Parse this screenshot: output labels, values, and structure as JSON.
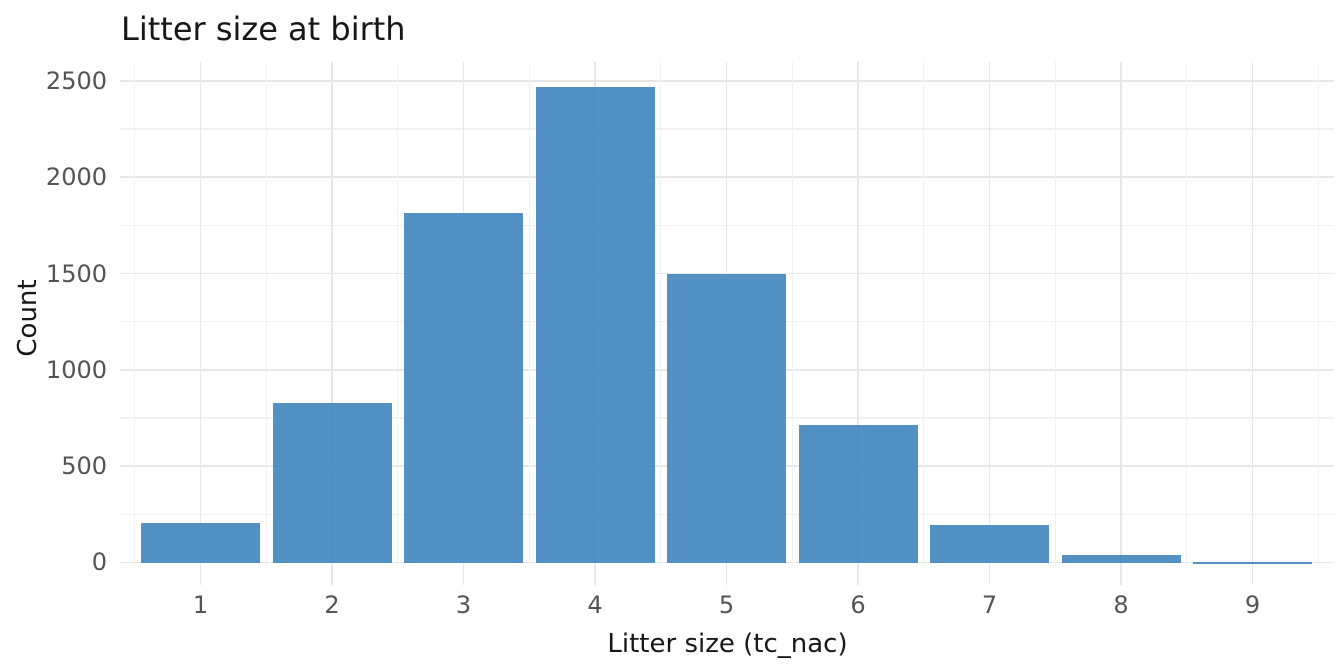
{
  "figure": {
    "background": "#ffffff"
  },
  "chart_data": {
    "type": "bar",
    "title": "Litter size at birth",
    "xlabel": "Litter size (tc_nac)",
    "ylabel": "Count",
    "categories": [
      1,
      2,
      3,
      4,
      5,
      6,
      7,
      8,
      9
    ],
    "values": [
      210,
      835,
      1820,
      2475,
      1505,
      720,
      200,
      45,
      10
    ],
    "y_ticks": [
      0,
      500,
      1000,
      1500,
      2000,
      2500
    ],
    "y_minor_ticks": [
      250,
      750,
      1250,
      1750,
      2250
    ],
    "ylim": [
      0,
      2600
    ],
    "grid": "major and minor, light gray on white",
    "legend": "none",
    "bar_color": "#5390c4",
    "grid_major_color": "#e7e7e7",
    "grid_minor_color": "#f1f1f1",
    "tick_label_color": "#545454",
    "title_color": "#171717"
  }
}
